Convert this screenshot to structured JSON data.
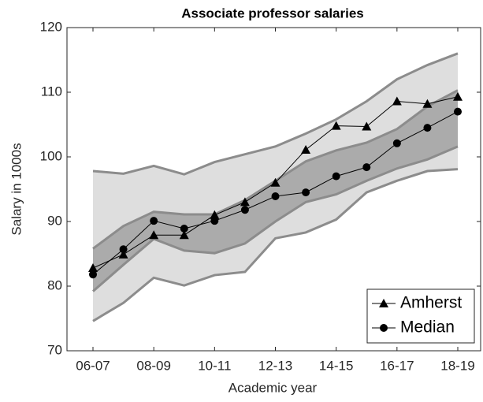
{
  "chart_data": {
    "type": "line",
    "title": "Associate professor salaries",
    "x_label": "Academic year",
    "y_label": "Salary in 1000s",
    "categories": [
      "06-07",
      null,
      "08-09",
      null,
      "10-11",
      null,
      "12-13",
      null,
      "14-15",
      null,
      "16-17",
      null,
      "18-19"
    ],
    "ylim": [
      70,
      120
    ],
    "yticks": [
      70,
      80,
      90,
      100,
      110,
      120
    ],
    "legend": "lower right",
    "bands": [
      {
        "color": "#dedede",
        "line_color": "#8c8c8c",
        "upper": [
          97.8,
          97.4,
          98.6,
          97.3,
          99.2,
          100.4,
          101.6,
          103.6,
          105.8,
          108.6,
          112.0,
          114.2,
          116.0
        ],
        "lower": [
          74.6,
          77.4,
          81.3,
          80.1,
          81.7,
          82.2,
          87.4,
          88.3,
          90.3,
          94.5,
          96.3,
          97.8,
          98.1
        ]
      },
      {
        "color": "#ababab",
        "line_color": "#8c8c8c",
        "upper": [
          85.8,
          89.3,
          91.5,
          91.1,
          91.1,
          93.3,
          96.3,
          99.3,
          101.0,
          102.2,
          104.3,
          107.8,
          110.3
        ],
        "lower": [
          79.2,
          83.3,
          87.3,
          85.5,
          85.1,
          86.6,
          90.0,
          93.0,
          94.2,
          96.3,
          98.2,
          99.6,
          101.6
        ]
      }
    ],
    "series": [
      {
        "name": "Amherst",
        "color": "#000000",
        "marker": "triangle",
        "values": [
          82.8,
          84.9,
          87.9,
          87.9,
          91.0,
          93.0,
          96.0,
          101.1,
          104.8,
          104.7,
          108.6,
          108.2,
          109.3
        ]
      },
      {
        "name": "Median",
        "color": "#000000",
        "marker": "circle",
        "values": [
          81.8,
          85.7,
          90.1,
          88.9,
          90.1,
          91.8,
          93.9,
          94.5,
          97.0,
          98.4,
          102.1,
          104.5,
          107.0
        ]
      }
    ]
  }
}
